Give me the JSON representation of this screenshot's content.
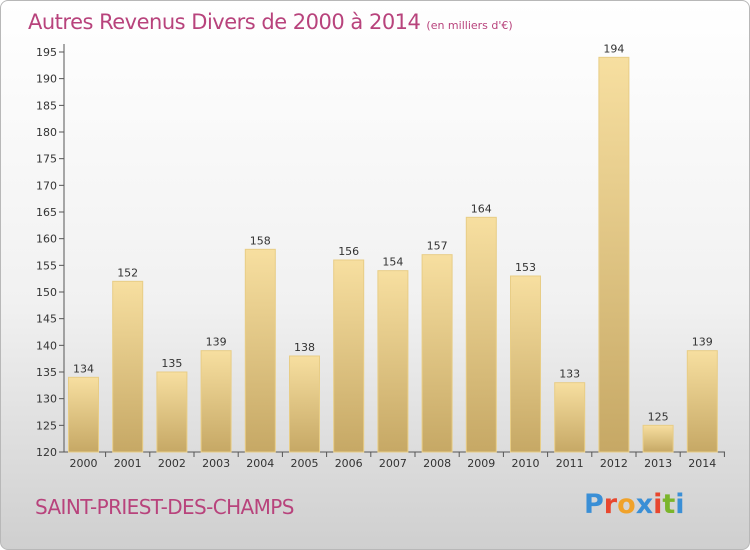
{
  "title": "Autres Revenus Divers de 2000 à 2014",
  "unit": "(en milliers d'€)",
  "commune": "SAINT-PRIEST-DES-CHAMPS",
  "logo": {
    "text": "Proxiti",
    "colors": [
      "#3a8fd6",
      "#e8472e",
      "#f0a22a",
      "#3a8fd6",
      "#e8472e",
      "#7bb52b",
      "#3a8fd6"
    ]
  },
  "colors": {
    "title": "#b8437c",
    "bar_light": "#f7dfa0",
    "bar_dark": "#c6a865",
    "bar_edge": "#e8cd86"
  },
  "chart_data": {
    "type": "bar",
    "title": "Autres Revenus Divers de 2000 à 2014",
    "xlabel": "",
    "ylabel": "",
    "ylim": [
      120,
      195
    ],
    "yticks": [
      120,
      125,
      130,
      135,
      140,
      145,
      150,
      155,
      160,
      165,
      170,
      175,
      180,
      185,
      190,
      195
    ],
    "grid": false,
    "categories": [
      "2000",
      "2001",
      "2002",
      "2003",
      "2004",
      "2005",
      "2006",
      "2007",
      "2008",
      "2009",
      "2010",
      "2011",
      "2012",
      "2013",
      "2014"
    ],
    "values": [
      134,
      152,
      135,
      139,
      158,
      138,
      156,
      154,
      157,
      164,
      153,
      133,
      194,
      125,
      139
    ]
  }
}
